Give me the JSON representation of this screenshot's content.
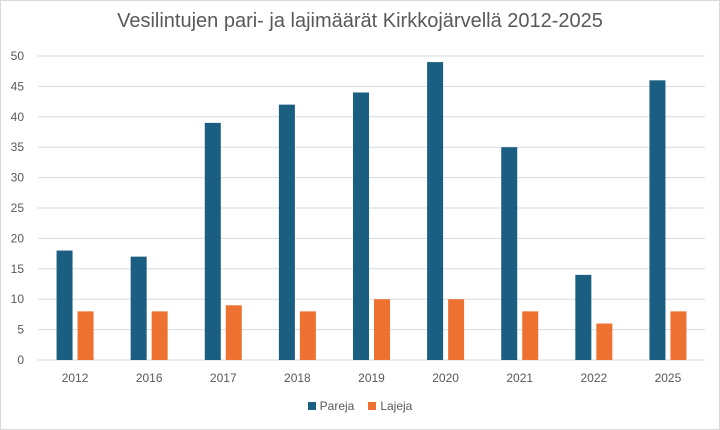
{
  "chart_data": {
    "type": "bar",
    "title": "Vesilintujen pari- ja lajimäärät Kirkkojärvellä 2012-2025",
    "xlabel": "",
    "ylabel": "",
    "categories": [
      "2012",
      "2016",
      "2017",
      "2018",
      "2019",
      "2020",
      "2021",
      "2022",
      "2025"
    ],
    "series": [
      {
        "name": "Pareja",
        "color": "#1a5e82",
        "values": [
          18,
          17,
          39,
          42,
          44,
          49,
          35,
          14,
          46
        ]
      },
      {
        "name": "Lajeja",
        "color": "#ed7232",
        "values": [
          8,
          8,
          9,
          8,
          10,
          10,
          8,
          6,
          8
        ]
      }
    ],
    "ylim": [
      0,
      50
    ],
    "yticks": [
      0,
      5,
      10,
      15,
      20,
      25,
      30,
      35,
      40,
      45,
      50
    ],
    "grid": true,
    "legend_position": "bottom"
  },
  "legend": {
    "items": [
      {
        "label": "Pareja",
        "color": "#1a5e82"
      },
      {
        "label": "Lajeja",
        "color": "#ed7232"
      }
    ]
  }
}
